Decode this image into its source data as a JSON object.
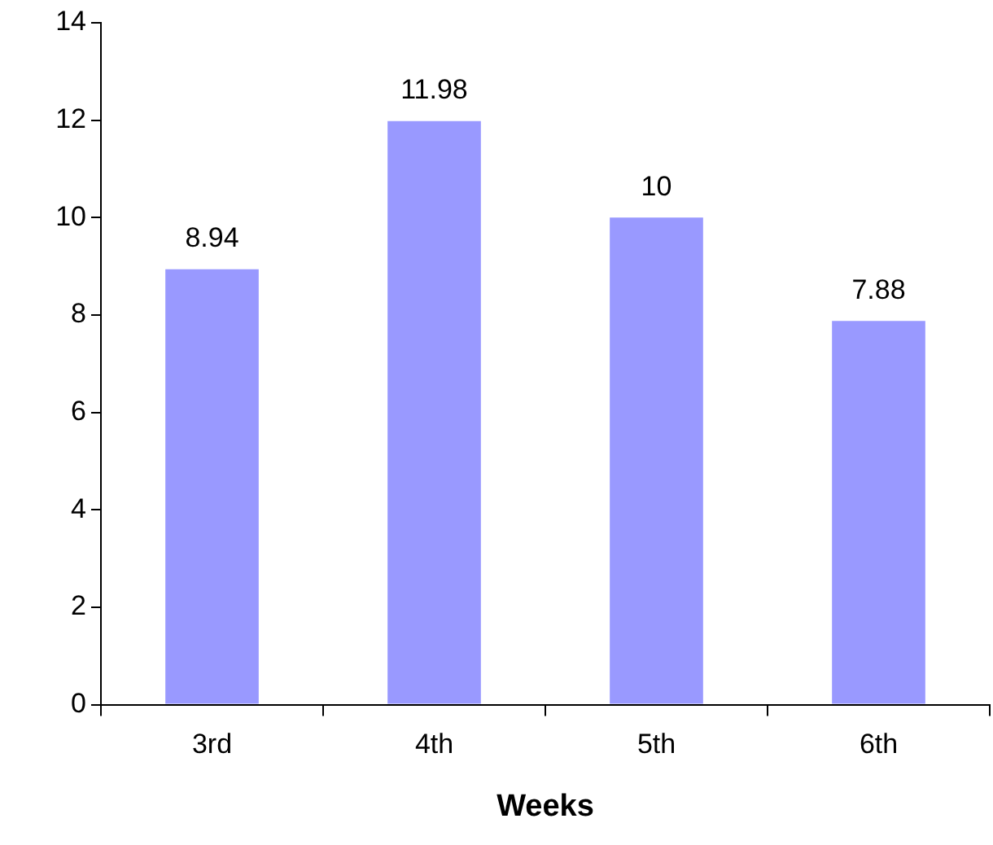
{
  "chart_data": {
    "type": "bar",
    "xlabel": "Weeks",
    "categories": [
      "3rd",
      "4th",
      "5th",
      "6th"
    ],
    "values": [
      8.94,
      11.98,
      10,
      7.88
    ],
    "color": "#9999ff",
    "ylim": [
      0,
      14
    ],
    "yticks": [
      0,
      2,
      4,
      6,
      8,
      10,
      12,
      14
    ],
    "grid": false,
    "legend": false,
    "data_labels": true
  }
}
